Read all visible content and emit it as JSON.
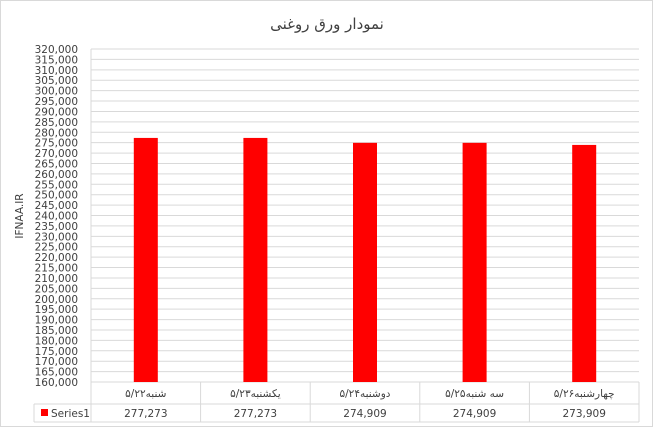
{
  "chart_data": {
    "type": "bar",
    "title": "نمودار ورق روغنی",
    "ylabel": "IFNAA.IR",
    "xlabel": "",
    "categories": [
      "شنبه۵/۲۲",
      "یکشنبه۵/۲۳",
      "دوشنبه۵/۲۴",
      "سه شنبه۵/۲۵",
      "چهارشنبه۵/۲۶"
    ],
    "series": [
      {
        "name": "Series1",
        "values": [
          277273,
          277273,
          274909,
          274909,
          273909
        ],
        "labels": [
          "277,273",
          "277,273",
          "274,909",
          "274,909",
          "273,909"
        ],
        "color": "#ff0000"
      }
    ],
    "ylim": [
      160000,
      320000
    ],
    "ytick_step": 5000,
    "grid": true,
    "data_table": true
  }
}
